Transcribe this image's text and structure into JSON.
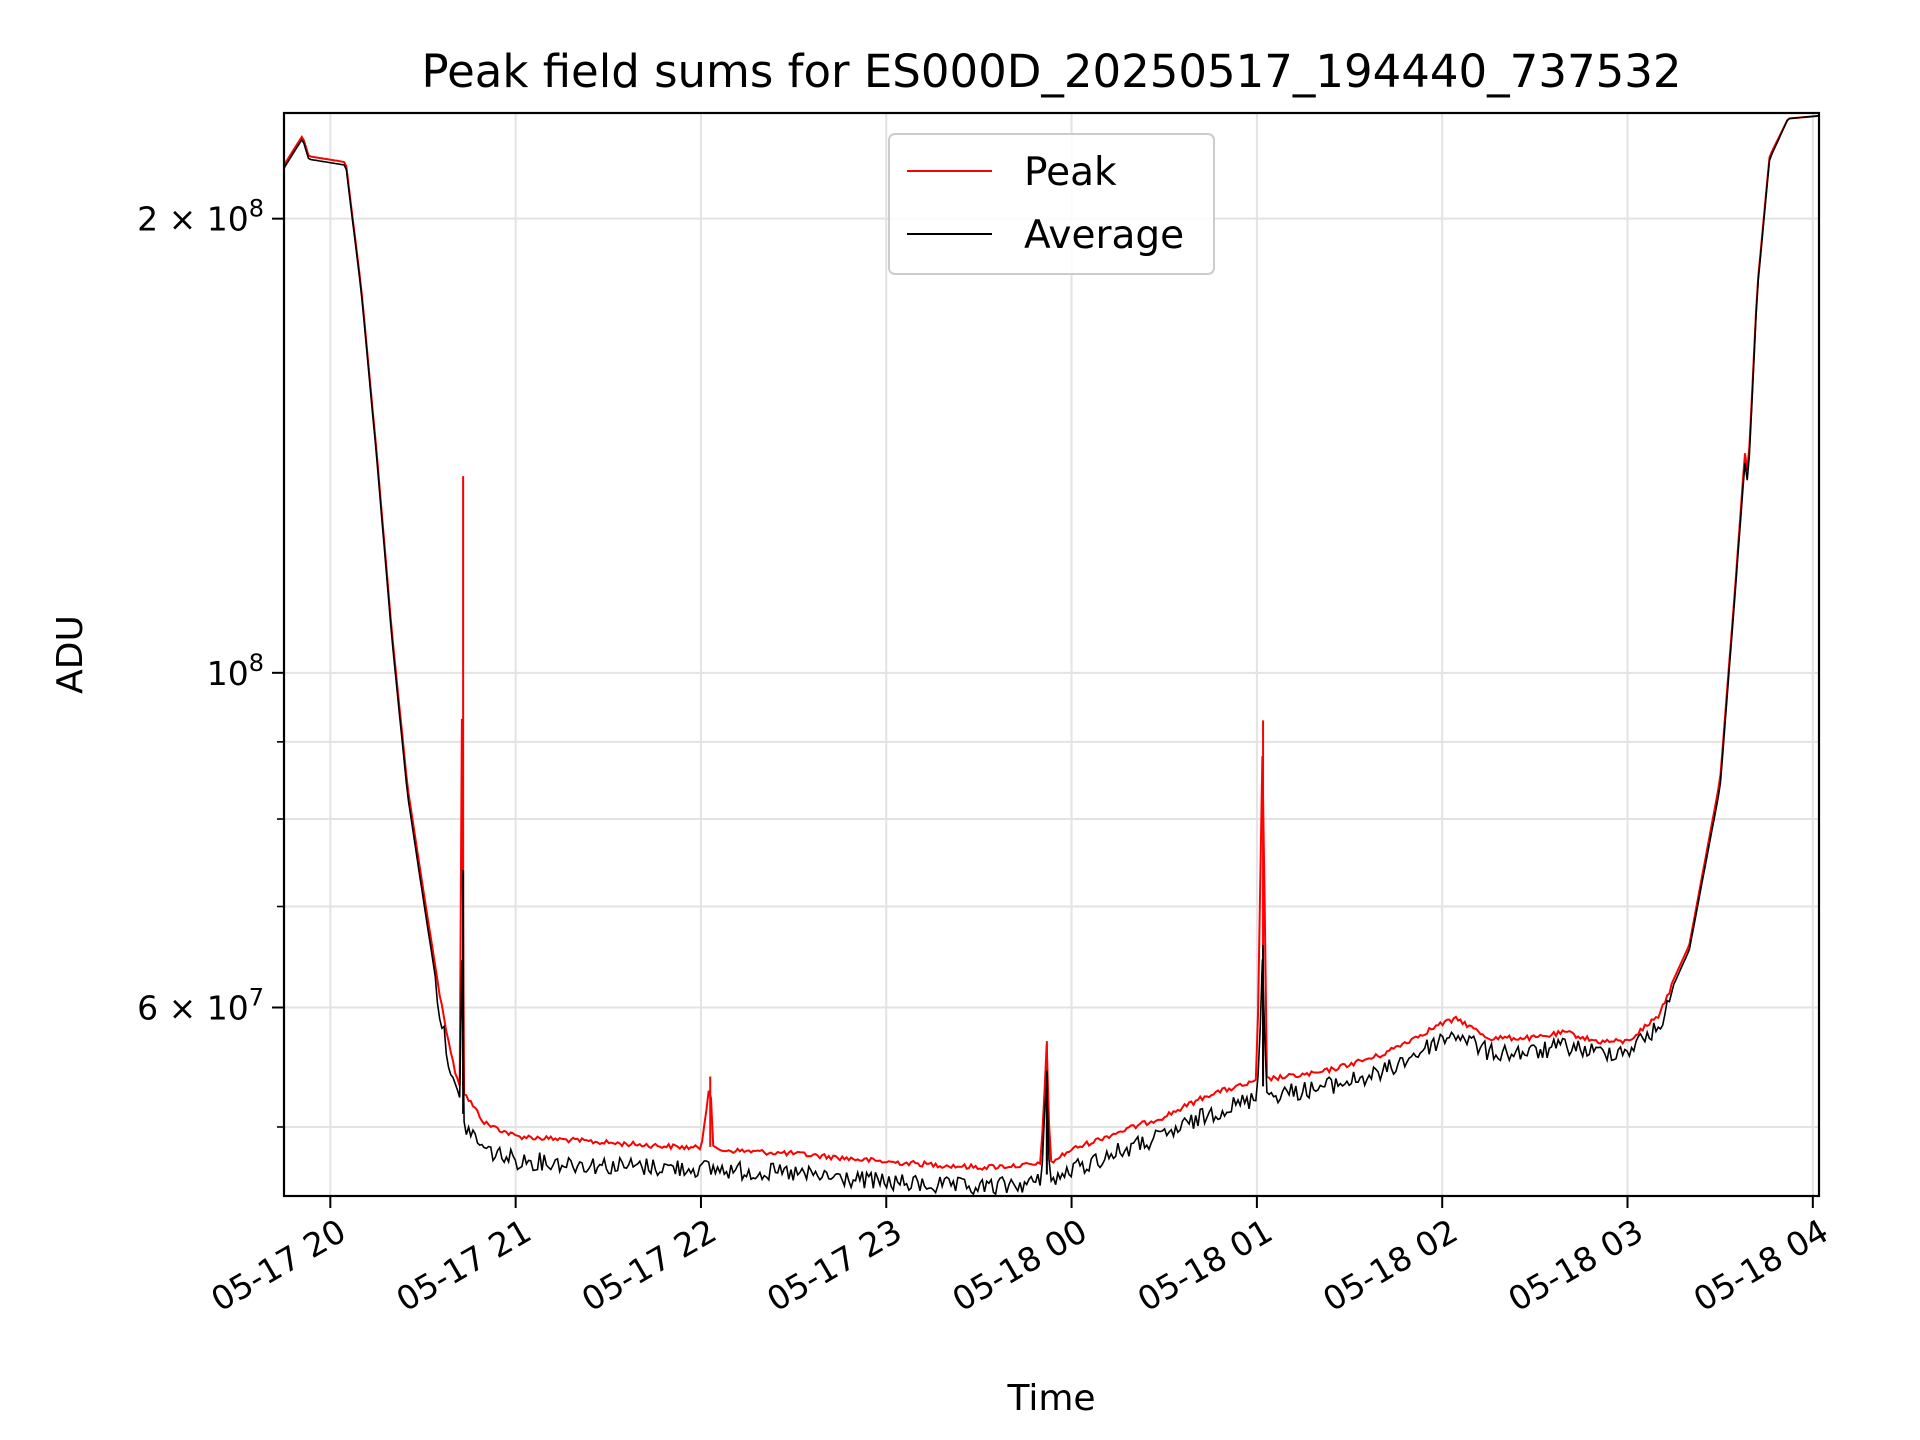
{
  "chart_data": {
    "type": "line",
    "title": "Peak field sums for ES000D_20250517_194440_737532",
    "xlabel": "Time",
    "ylabel": "ADU",
    "x_unit": "hours",
    "x_start_label": "05-17 19:45",
    "xlim": [
      "05-17 19:45",
      "05-18 04:02"
    ],
    "ylim": [
      45000000,
      235000000
    ],
    "yscale": "log",
    "grid": true,
    "legend_position": "top-center",
    "x_ticks": [
      "05-17 20",
      "05-17 21",
      "05-17 22",
      "05-17 23",
      "05-18 00",
      "05-18 01",
      "05-18 02",
      "05-18 03",
      "05-18 04"
    ],
    "y_ticks": [
      {
        "value": 200000000,
        "mantissa": "2",
        "exponent": "8"
      },
      {
        "value": 100000000,
        "mantissa": "",
        "exponent": "8"
      },
      {
        "value": 60000000,
        "mantissa": "6",
        "exponent": "7"
      }
    ],
    "series": [
      {
        "name": "Peak",
        "color": "#ff0000",
        "points": [
          [
            "05-17 19:45",
            217000000.0
          ],
          [
            "05-17 19:48",
            222000000.0
          ],
          [
            "05-17 19:51",
            227000000.0
          ],
          [
            "05-17 19:53",
            220000000.0
          ],
          [
            "05-17 20:05",
            218000000.0
          ],
          [
            "05-17 20:10",
            180000000.0
          ],
          [
            "05-17 20:15",
            140000000.0
          ],
          [
            "05-17 20:20",
            106000000.0
          ],
          [
            "05-17 20:25",
            84000000.0
          ],
          [
            "05-17 20:30",
            72000000.0
          ],
          [
            "05-17 20:35",
            62000000.0
          ],
          [
            "05-17 20:40",
            55000000.0
          ],
          [
            "05-17 20:42",
            53500000.0
          ],
          [
            "05-17 20:43",
            135000000.0
          ],
          [
            "05-17 20:43",
            53000000.0
          ],
          [
            "05-17 20:50",
            50500000.0
          ],
          [
            "05-17 21:00",
            49500000.0
          ],
          [
            "05-17 21:30",
            49000000.0
          ],
          [
            "05-17 22:00",
            48600000.0
          ],
          [
            "05-17 22:03",
            54000000.0
          ],
          [
            "05-17 22:04",
            48500000.0
          ],
          [
            "05-17 22:30",
            48200000.0
          ],
          [
            "05-17 23:00",
            47600000.0
          ],
          [
            "05-17 23:30",
            47200000.0
          ],
          [
            "05-17 23:50",
            47400000.0
          ],
          [
            "05-17 23:52",
            57000000.0
          ],
          [
            "05-17 23:53",
            47500000.0
          ],
          [
            "05-18 00:00",
            48500000.0
          ],
          [
            "05-18 00:15",
            49800000.0
          ],
          [
            "05-18 00:30",
            51000000.0
          ],
          [
            "05-18 00:45",
            52800000.0
          ],
          [
            "05-18 01:00",
            53800000.0
          ],
          [
            "05-18 01:02",
            93000000.0
          ],
          [
            "05-18 01:03",
            54000000.0
          ],
          [
            "05-18 01:20",
            54500000.0
          ],
          [
            "05-18 01:40",
            56000000.0
          ],
          [
            "05-18 02:00",
            58800000.0
          ],
          [
            "05-18 02:05",
            59200000.0
          ],
          [
            "05-18 02:15",
            57500000.0
          ],
          [
            "05-18 02:30",
            57500000.0
          ],
          [
            "05-18 02:40",
            58000000.0
          ],
          [
            "05-18 02:50",
            57200000.0
          ],
          [
            "05-18 03:00",
            57200000.0
          ],
          [
            "05-18 03:10",
            59500000.0
          ],
          [
            "05-18 03:20",
            66000000.0
          ],
          [
            "05-18 03:30",
            85000000.0
          ],
          [
            "05-18 03:35",
            115000000.0
          ],
          [
            "05-18 03:38",
            140000000.0
          ],
          [
            "05-18 03:39",
            135000000.0
          ],
          [
            "05-18 03:42",
            180000000.0
          ],
          [
            "05-18 03:46",
            220000000.0
          ],
          [
            "05-18 03:52",
            233000000.0
          ],
          [
            "05-18 04:02",
            234000000.0
          ]
        ]
      },
      {
        "name": "Average",
        "color": "#000000",
        "points": [
          [
            "05-17 19:45",
            216000000.0
          ],
          [
            "05-17 19:48",
            221000000.0
          ],
          [
            "05-17 19:51",
            226000000.0
          ],
          [
            "05-17 19:53",
            219000000.0
          ],
          [
            "05-17 20:05",
            217000000.0
          ],
          [
            "05-17 20:10",
            179000000.0
          ],
          [
            "05-17 20:15",
            139000000.0
          ],
          [
            "05-17 20:20",
            105000000.0
          ],
          [
            "05-17 20:25",
            83000000.0
          ],
          [
            "05-17 20:30",
            71000000.0
          ],
          [
            "05-17 20:35",
            61000000.0
          ],
          [
            "05-17 20:40",
            54000000.0
          ],
          [
            "05-17 20:42",
            52500000.0
          ],
          [
            "05-17 20:43",
            74000000.0
          ],
          [
            "05-17 20:43",
            51000000.0
          ],
          [
            "05-17 20:50",
            49000000.0
          ],
          [
            "05-17 21:00",
            48200000.0
          ],
          [
            "05-17 21:30",
            47800000.0
          ],
          [
            "05-17 22:00",
            47600000.0
          ],
          [
            "05-17 22:30",
            47200000.0
          ],
          [
            "05-17 23:00",
            46600000.0
          ],
          [
            "05-17 23:30",
            46200000.0
          ],
          [
            "05-17 23:50",
            46600000.0
          ],
          [
            "05-17 23:52",
            54500000.0
          ],
          [
            "05-17 23:53",
            46500000.0
          ],
          [
            "05-18 00:00",
            47500000.0
          ],
          [
            "05-18 00:15",
            48800000.0
          ],
          [
            "05-18 00:30",
            50000000.0
          ],
          [
            "05-18 00:45",
            51800000.0
          ],
          [
            "05-18 01:00",
            53000000.0
          ],
          [
            "05-18 01:02",
            66000000.0
          ],
          [
            "05-18 01:03",
            53200000.0
          ],
          [
            "05-18 01:20",
            53800000.0
          ],
          [
            "05-18 01:40",
            55000000.0
          ],
          [
            "05-18 02:00",
            58000000.0
          ],
          [
            "05-18 02:05",
            58500000.0
          ],
          [
            "05-18 02:15",
            56800000.0
          ],
          [
            "05-18 02:30",
            56800000.0
          ],
          [
            "05-18 02:40",
            57400000.0
          ],
          [
            "05-18 02:50",
            56800000.0
          ],
          [
            "05-18 03:00",
            57000000.0
          ],
          [
            "05-18 03:10",
            59000000.0
          ],
          [
            "05-18 03:20",
            65500000.0
          ],
          [
            "05-18 03:30",
            84000000.0
          ],
          [
            "05-18 03:35",
            114000000.0
          ],
          [
            "05-18 03:38",
            138000000.0
          ],
          [
            "05-18 03:39",
            133000000.0
          ],
          [
            "05-18 03:42",
            179000000.0
          ],
          [
            "05-18 03:46",
            219000000.0
          ],
          [
            "05-18 03:52",
            233000000.0
          ],
          [
            "05-18 04:02",
            234000000.0
          ]
        ]
      }
    ]
  }
}
